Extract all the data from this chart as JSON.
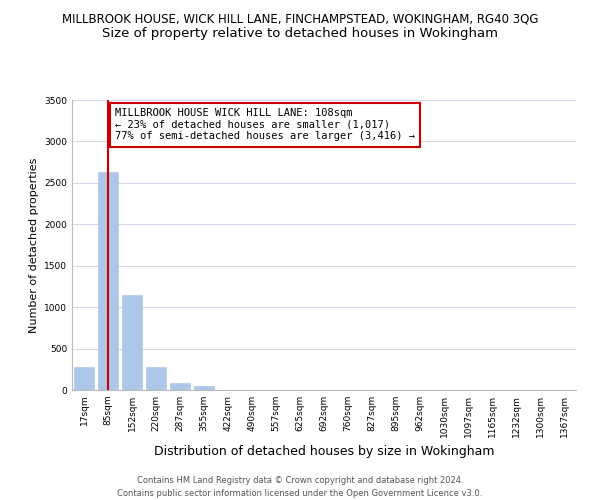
{
  "title": "MILLBROOK HOUSE, WICK HILL LANE, FINCHAMPSTEAD, WOKINGHAM, RG40 3QG",
  "subtitle": "Size of property relative to detached houses in Wokingham",
  "xlabel": "Distribution of detached houses by size in Wokingham",
  "ylabel": "Number of detached properties",
  "bar_labels": [
    "17sqm",
    "85sqm",
    "152sqm",
    "220sqm",
    "287sqm",
    "355sqm",
    "422sqm",
    "490sqm",
    "557sqm",
    "625sqm",
    "692sqm",
    "760sqm",
    "827sqm",
    "895sqm",
    "962sqm",
    "1030sqm",
    "1097sqm",
    "1165sqm",
    "1232sqm",
    "1300sqm",
    "1367sqm"
  ],
  "bar_values": [
    280,
    2630,
    1150,
    280,
    85,
    50,
    0,
    0,
    0,
    0,
    0,
    0,
    0,
    0,
    0,
    0,
    0,
    0,
    0,
    0,
    0
  ],
  "bar_color": "#aec6e8",
  "bar_edge_color": "#aec6e8",
  "vline_x_bar_index": 1,
  "vline_color": "#cc0000",
  "ylim": [
    0,
    3500
  ],
  "yticks": [
    0,
    500,
    1000,
    1500,
    2000,
    2500,
    3000,
    3500
  ],
  "annotation_title": "MILLBROOK HOUSE WICK HILL LANE: 108sqm",
  "annotation_line1": "← 23% of detached houses are smaller (1,017)",
  "annotation_line2": "77% of semi-detached houses are larger (3,416) →",
  "annotation_box_color": "#ffffff",
  "annotation_box_edge": "#cc0000",
  "footer1": "Contains HM Land Registry data © Crown copyright and database right 2024.",
  "footer2": "Contains public sector information licensed under the Open Government Licence v3.0.",
  "bg_color": "#ffffff",
  "grid_color": "#d0daea",
  "title_fontsize": 8.5,
  "subtitle_fontsize": 9.5,
  "ylabel_fontsize": 8,
  "xlabel_fontsize": 9,
  "tick_fontsize": 6.5,
  "footer_fontsize": 6,
  "annot_fontsize": 7.5
}
